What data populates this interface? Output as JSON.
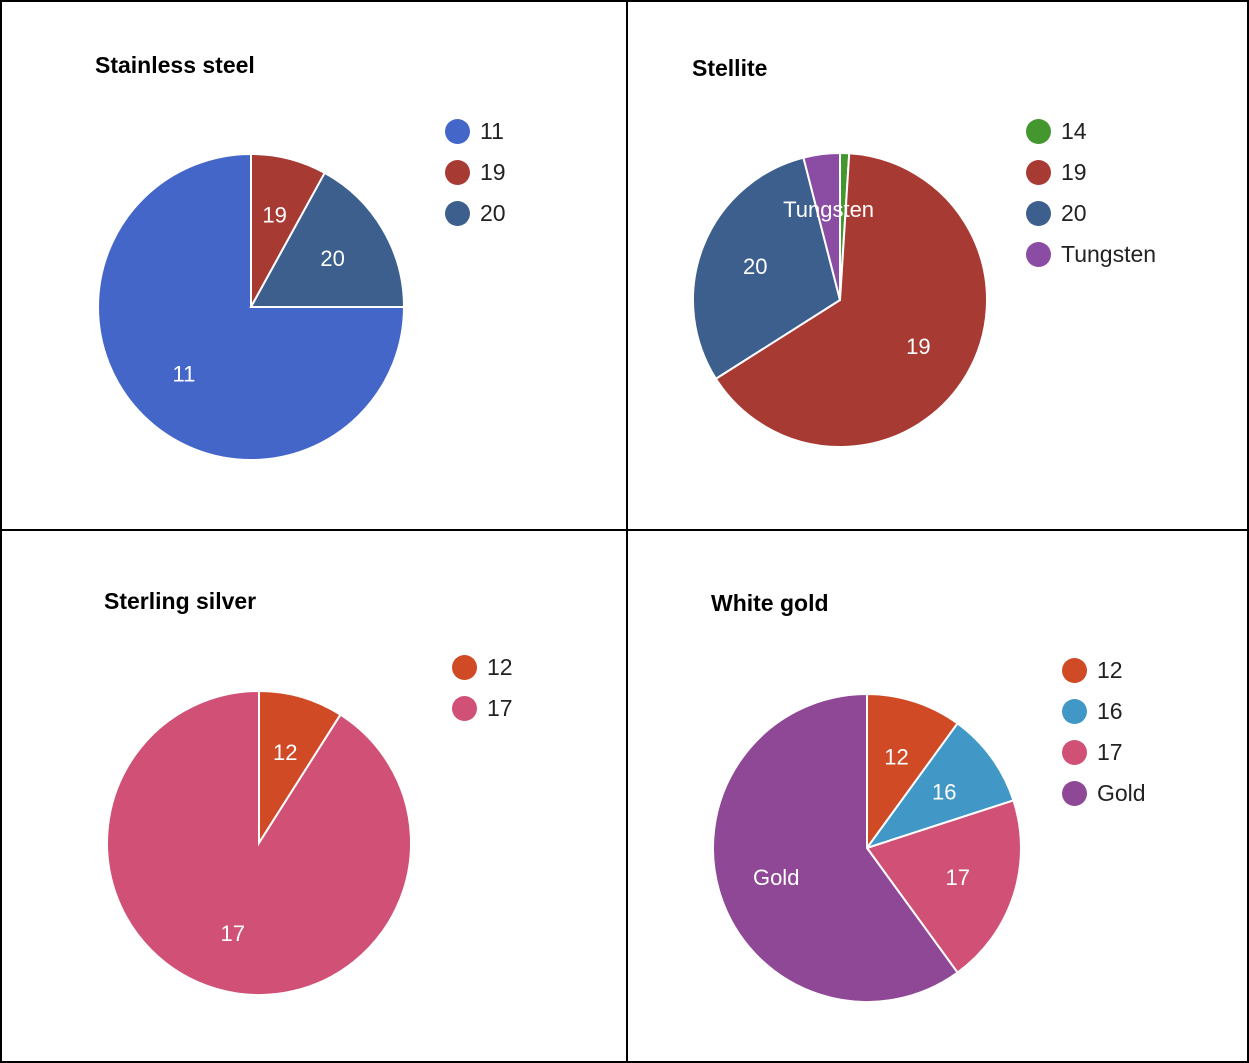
{
  "chart_data": [
    {
      "type": "pie",
      "title": "Stainless steel",
      "legend_position": "right",
      "start_angle": 90,
      "slices": [
        {
          "label": "11",
          "value": 75,
          "color": "#4366c8"
        },
        {
          "label": "19",
          "value": 8,
          "color": "#a83a34"
        },
        {
          "label": "20",
          "value": 17,
          "color": "#3c5f8e"
        }
      ]
    },
    {
      "type": "pie",
      "title": "Stellite",
      "legend_position": "right",
      "start_angle": 0,
      "slices": [
        {
          "label": "14",
          "value": 1,
          "color": "#44962e"
        },
        {
          "label": "19",
          "value": 65,
          "color": "#a83a34"
        },
        {
          "label": "20",
          "value": 30,
          "color": "#3c5f8e"
        },
        {
          "label": "Tungsten",
          "value": 4,
          "color": "#8b4da3"
        }
      ],
      "legend_order": [
        "14",
        "19",
        "20",
        "Tungsten"
      ]
    },
    {
      "type": "pie",
      "title": "Sterling silver",
      "legend_position": "right",
      "start_angle": 0,
      "slices": [
        {
          "label": "12",
          "value": 9,
          "color": "#cf4a25"
        },
        {
          "label": "17",
          "value": 91,
          "color": "#d05076"
        }
      ]
    },
    {
      "type": "pie",
      "title": "White gold",
      "legend_position": "right",
      "start_angle": 0,
      "slices": [
        {
          "label": "12",
          "value": 10,
          "color": "#cf4a25"
        },
        {
          "label": "16",
          "value": 10,
          "color": "#4197c6"
        },
        {
          "label": "17",
          "value": 20,
          "color": "#d05076"
        },
        {
          "label": "Gold",
          "value": 60,
          "color": "#8e4895"
        }
      ]
    }
  ]
}
